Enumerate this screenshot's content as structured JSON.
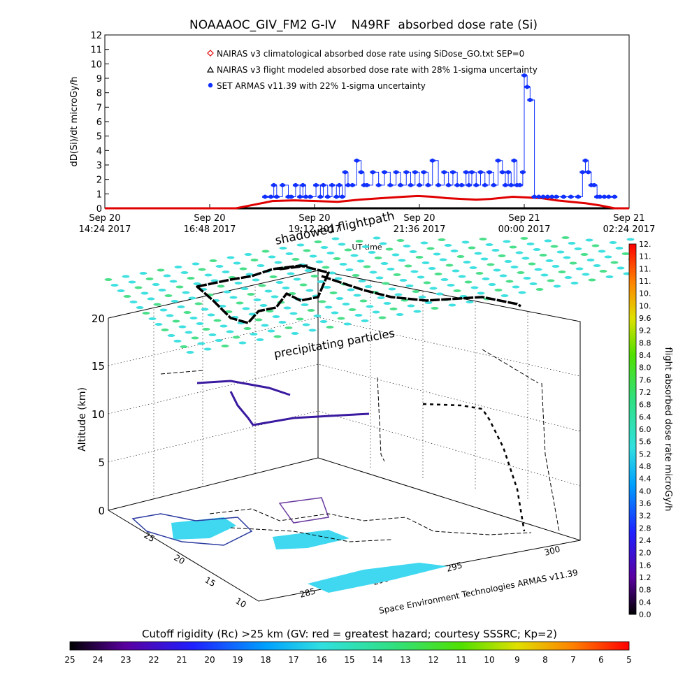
{
  "title": "NOAAAOC_GIV_FM2 G-IV    N49RF  absorbed dose rate (Si)",
  "colors": {
    "armas": "#1030ff",
    "nairas_clim": "#e00000",
    "nairas_flight": "#000000",
    "grid_cyan": "#3fe0e0",
    "grid_green": "#4adf8a"
  },
  "chart_data": [
    {
      "type": "line",
      "name": "timeseries",
      "ylabel": "dD(Si)/dt microGy/h",
      "xlabel": "UT time",
      "ylim": [
        0,
        12
      ],
      "yticks": [
        "0",
        "1",
        "2",
        "3",
        "4",
        "5",
        "6",
        "7",
        "8",
        "9",
        "10",
        "11",
        "12"
      ],
      "xticks": [
        {
          "t": 0,
          "line1": "Sep 20",
          "line2": "14:24 2017"
        },
        {
          "t": 144,
          "line1": "Sep 20",
          "line2": "16:48 2017"
        },
        {
          "t": 288,
          "line1": "Sep 20",
          "line2": "19:12 2017"
        },
        {
          "t": 432,
          "line1": "Sep 20",
          "line2": "21:36 2017"
        },
        {
          "t": 576,
          "line1": "Sep 21",
          "line2": "00:00 2017"
        },
        {
          "t": 720,
          "line1": "Sep 21",
          "line2": "02:24 2017"
        }
      ],
      "xlim": [
        0,
        720
      ],
      "legend": [
        {
          "marker": "diamond",
          "label": "NAIRAS v3 climatological absorbed dose rate using SiDose_GO.txt SEP=0"
        },
        {
          "marker": "triangle",
          "label": "NAIRAS v3 flight modeled absorbed dose rate with 28% 1-sigma uncertainty"
        },
        {
          "marker": "dot",
          "label": "SET ARMAS v11.39 with 22% 1-sigma uncertainty"
        }
      ],
      "series": [
        {
          "name": "NAIRAS v3 climatological absorbed dose rate using SiDose_GO.txt SEP=0",
          "x": [
            0,
            120,
            180,
            210,
            230,
            260,
            290,
            320,
            350,
            380,
            410,
            430,
            450,
            470,
            490,
            510,
            530,
            560,
            580,
            600,
            620,
            640,
            660,
            680,
            700,
            710,
            720
          ],
          "y": [
            0,
            0,
            0,
            0.3,
            0.5,
            0.55,
            0.5,
            0.45,
            0.6,
            0.7,
            0.8,
            0.85,
            0.8,
            0.7,
            0.65,
            0.6,
            0.65,
            0.8,
            0.75,
            0.7,
            0.55,
            0.45,
            0.35,
            0.2,
            0,
            0,
            0
          ]
        },
        {
          "name": "NAIRAS v3 flight modeled absorbed dose rate with 28% 1-sigma uncertainty",
          "x": [
            120,
            200,
            300,
            400,
            500,
            560,
            580,
            600,
            700,
            720
          ],
          "y": [
            0,
            0,
            0,
            0,
            0,
            0,
            0,
            0,
            0,
            0
          ]
        },
        {
          "name": "SET ARMAS v11.39 with 22% 1-sigma uncertainty",
          "x": [
            220,
            228,
            232,
            236,
            244,
            252,
            256,
            262,
            268,
            272,
            276,
            282,
            290,
            296,
            300,
            306,
            312,
            318,
            322,
            326,
            330,
            334,
            340,
            346,
            352,
            356,
            360,
            368,
            376,
            384,
            392,
            400,
            406,
            414,
            420,
            426,
            432,
            438,
            444,
            450,
            458,
            466,
            472,
            478,
            484,
            490,
            496,
            500,
            504,
            510,
            516,
            522,
            528,
            534,
            540,
            546,
            550,
            554,
            558,
            562,
            566,
            570,
            574,
            576,
            580,
            584,
            590,
            596,
            602,
            608,
            614,
            620,
            630,
            640,
            650,
            656,
            660,
            664,
            668,
            672,
            676,
            680,
            686,
            692,
            700
          ],
          "y": [
            0.8,
            0.8,
            1.6,
            0.8,
            1.6,
            0.8,
            0.8,
            1.6,
            0.8,
            1.6,
            0.8,
            0.8,
            1.6,
            0.8,
            1.6,
            0.8,
            1.6,
            0.8,
            1.6,
            0.8,
            2.5,
            1.6,
            1.6,
            3.3,
            2.5,
            1.6,
            1.6,
            2.5,
            1.6,
            2.5,
            1.6,
            2.5,
            1.6,
            2.5,
            1.6,
            2.5,
            1.6,
            2.5,
            1.6,
            3.3,
            1.6,
            2.5,
            1.6,
            2.5,
            1.6,
            1.6,
            2.5,
            1.6,
            2.5,
            1.6,
            2.5,
            1.6,
            2.5,
            1.6,
            3.3,
            2.5,
            1.6,
            2.5,
            1.6,
            3.3,
            1.6,
            1.6,
            2.5,
            9.2,
            8.4,
            7.5,
            0.8,
            0.8,
            0.8,
            0.8,
            0.8,
            0.8,
            0.8,
            0.8,
            0.8,
            2.5,
            3.3,
            2.5,
            1.6,
            1.6,
            0.8,
            0.8,
            0.8,
            0.8,
            0.8
          ]
        }
      ]
    },
    {
      "type": "scatter",
      "name": "3d-flight-view",
      "zlabel": "Altitude (km)",
      "zticks": [
        "0",
        "5",
        "10",
        "15",
        "20"
      ],
      "lat_ticks": [
        "25",
        "20",
        "15",
        "10"
      ],
      "lon_ticks": [
        "285",
        "290",
        "295",
        "300"
      ],
      "annotations": [
        "shadowed flightpath",
        "precipitating particles",
        "Space Environment Technologies ARMAS v11.39"
      ]
    },
    {
      "type": "heatmap",
      "name": "dose-colorbar",
      "label": "flight absorbed dose rate microGy/h",
      "ticks": [
        "0.0",
        "0.4",
        "0.8",
        "1.2",
        "1.6",
        "2.0",
        "2.4",
        "2.8",
        "3.2",
        "3.6",
        "4.0",
        "4.4",
        "4.8",
        "5.2",
        "5.6",
        "6.0",
        "6.4",
        "6.8",
        "7.2",
        "7.6",
        "8.0",
        "8.4",
        "8.8",
        "9.2",
        "9.6",
        "10.",
        "10.",
        "11.",
        "11.",
        "11.",
        "12."
      ]
    },
    {
      "type": "heatmap",
      "name": "rigidity-colorbar",
      "label": "Cutoff rigidity (Rc) >25 km (GV: red = greatest hazard; courtesy SSSRC; Kp=2)",
      "ticks": [
        "25",
        "24",
        "23",
        "22",
        "21",
        "20",
        "19",
        "18",
        "17",
        "16",
        "15",
        "14",
        "13",
        "12",
        "11",
        "10",
        "9",
        "8",
        "7",
        "6",
        "5"
      ]
    }
  ]
}
